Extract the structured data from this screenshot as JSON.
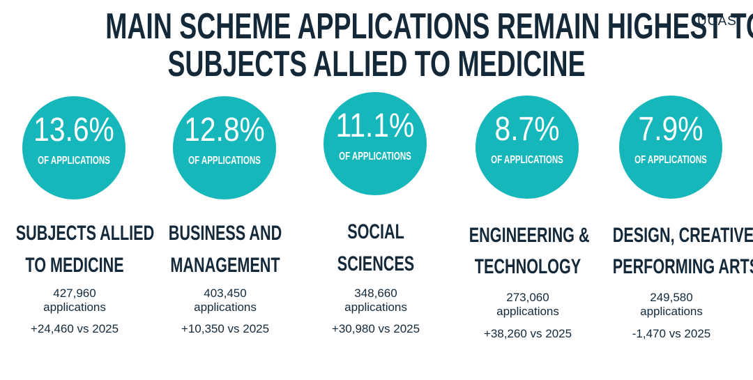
{
  "header": {
    "title_line1": "MAIN SCHEME APPLICATIONS REMAIN HIGHEST TO",
    "title_line2": "SUBJECTS ALLIED TO MEDICINE",
    "logo": "UCAS"
  },
  "colors": {
    "circle": "#16b7bb",
    "text": "#13293a"
  },
  "subjects": [
    {
      "percent": "13.6%",
      "percent_label": "OF APPLICATIONS",
      "name_line1": "SUBJECTS ALLIED",
      "name_line2": "TO MEDICINE",
      "count": "427,960",
      "count_label": "applications",
      "change": "+24,460 vs 2025"
    },
    {
      "percent": "12.8%",
      "percent_label": "OF APPLICATIONS",
      "name_line1": "BUSINESS AND",
      "name_line2": "MANAGEMENT",
      "count": "403,450",
      "count_label": "applications",
      "change": "+10,350 vs 2025"
    },
    {
      "percent": "11.1%",
      "percent_label": "OF APPLICATIONS",
      "name_line1": "SOCIAL",
      "name_line2": "SCIENCES",
      "count": "348,660",
      "count_label": "applications",
      "change": "+30,980 vs 2025"
    },
    {
      "percent": "8.7%",
      "percent_label": "OF APPLICATIONS",
      "name_line1": "ENGINEERING &",
      "name_line2": "TECHNOLOGY",
      "count": "273,060",
      "count_label": "applications",
      "change": "+38,260 vs 2025"
    },
    {
      "percent": "7.9%",
      "percent_label": "OF APPLICATIONS",
      "name_line1": "DESIGN, CREATIVE &",
      "name_line2": "PERFORMING ARTS",
      "count": "249,580",
      "count_label": "applications",
      "change": "-1,470 vs 2025"
    }
  ]
}
